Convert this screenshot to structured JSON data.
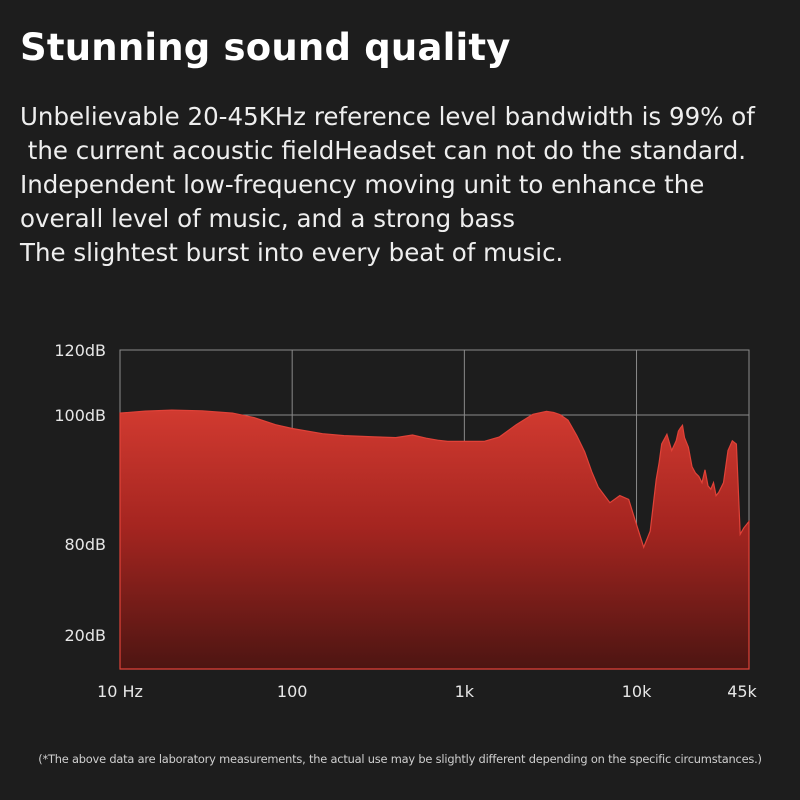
{
  "title": "Stunning sound quality",
  "description": [
    "Unbelievable 20-45KHz reference level bandwidth is 99% of",
    " the current acoustic fieldHeadset can not do the standard.",
    "Independent low-frequency moving unit to enhance the",
    "overall level of music, and a strong bass",
    "The slightest burst into every beat of music."
  ],
  "footnote": "(*The above data are laboratory measurements, the actual use may be slightly different depending on the specific circumstances.)",
  "colors": {
    "background": "#1d1d1d",
    "fill_top": "#c8302a",
    "fill_bottom": "#4a1512",
    "grid": "#8a8a8a",
    "text": "#f2f2f2"
  },
  "chart_data": {
    "type": "area",
    "x_scale": "log",
    "y_tick_labels": [
      "120dB",
      "100dB",
      "80dB",
      "20dB"
    ],
    "x_tick_labels": [
      "10 Hz",
      "100",
      "1k",
      "10k",
      "45k"
    ],
    "x_tick_values": [
      10,
      100,
      1000,
      10000,
      45000
    ],
    "grid": true,
    "series": [
      {
        "x": [
          10,
          14,
          20,
          30,
          45,
          60,
          80,
          100,
          150,
          200,
          300,
          400,
          500,
          600,
          700,
          800,
          1000,
          1300,
          1600,
          2000,
          2500,
          3000,
          3300,
          3600,
          4000,
          4500,
          5000,
          5500,
          6000,
          7000,
          8000,
          9000,
          10000,
          11000,
          12000,
          13000,
          13500,
          14000,
          15000,
          16000,
          17000,
          17500,
          18000,
          18500,
          19000,
          20000,
          21000,
          22000,
          23000,
          24000,
          25000,
          26000,
          27000,
          28000,
          29000,
          30000,
          32000,
          34000,
          36000,
          38000,
          40000,
          42000,
          45000
        ],
        "y": [
          100.6,
          101.2,
          101.5,
          101.3,
          100.6,
          99.6,
          98.5,
          97.9,
          97.1,
          96.8,
          96.6,
          96.5,
          96.9,
          96.4,
          96.1,
          95.9,
          95.9,
          95.9,
          96.6,
          98.5,
          100.2,
          101.1,
          100.8,
          100.1,
          99.2,
          96.8,
          94.3,
          91.2,
          88.8,
          86.4,
          87.5,
          86.9,
          83.0,
          79.5,
          82.0,
          90.0,
          92.5,
          95.5,
          97.0,
          94.5,
          96.0,
          97.5,
          98.0,
          98.4,
          96.5,
          95.0,
          92.0,
          91.0,
          90.5,
          89.5,
          91.5,
          89.0,
          88.5,
          89.5,
          87.5,
          88.0,
          89.5,
          94.5,
          96.0,
          95.5,
          81.5,
          82.5,
          83.5
        ]
      }
    ]
  }
}
